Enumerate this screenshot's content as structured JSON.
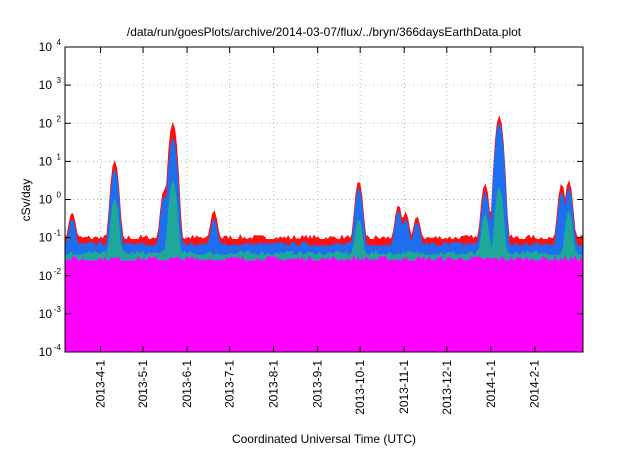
{
  "chart_data": {
    "type": "area",
    "title": "/data/run/goesPlots/archive/2014-03-07/flux/../bryn/366daysEarthData.plot",
    "xlabel": "Coordinated Universal Time (UTC)",
    "ylabel": "cSv/day",
    "y_scale": "log",
    "ylim": [
      0.0001,
      10000
    ],
    "xlim": [
      "2013-03-07",
      "2014-03-07"
    ],
    "grid": true,
    "y_ticks": [
      {
        "base": "10",
        "exp": "-4",
        "value": 0.0001
      },
      {
        "base": "10",
        "exp": "-3",
        "value": 0.001
      },
      {
        "base": "10",
        "exp": "-2",
        "value": 0.01
      },
      {
        "base": "10",
        "exp": "-1",
        "value": 0.1
      },
      {
        "base": "10",
        "exp": "0",
        "value": 1
      },
      {
        "base": "10",
        "exp": "1",
        "value": 10
      },
      {
        "base": "10",
        "exp": "2",
        "value": 100
      },
      {
        "base": "10",
        "exp": "3",
        "value": 1000
      },
      {
        "base": "10",
        "exp": "4",
        "value": 10000
      }
    ],
    "x_ticks": [
      {
        "label": "2013-4-1",
        "date": "2013-04-01"
      },
      {
        "label": "2013-5-1",
        "date": "2013-05-01"
      },
      {
        "label": "2013-6-1",
        "date": "2013-06-01"
      },
      {
        "label": "2013-7-1",
        "date": "2013-07-01"
      },
      {
        "label": "2013-8-1",
        "date": "2013-08-01"
      },
      {
        "label": "2013-9-1",
        "date": "2013-09-01"
      },
      {
        "label": "2013-10-1",
        "date": "2013-10-01"
      },
      {
        "label": "2013-11-1",
        "date": "2013-11-01"
      },
      {
        "label": "2013-12-1",
        "date": "2013-12-01"
      },
      {
        "label": "2014-1-1",
        "date": "2014-01-01"
      },
      {
        "label": "2014-2-1",
        "date": "2014-02-01"
      }
    ],
    "series": [
      {
        "color": "#ff1010",
        "baseline": 0.09,
        "peaks": [
          [
            "2013-03-12",
            0.45
          ],
          [
            "2013-04-11",
            10
          ],
          [
            "2013-05-16",
            1.8
          ],
          [
            "2013-05-22",
            100
          ],
          [
            "2013-06-20",
            0.5
          ],
          [
            "2013-09-30",
            3
          ],
          [
            "2013-10-28",
            0.7
          ],
          [
            "2013-11-02",
            0.45
          ],
          [
            "2013-11-10",
            0.35
          ],
          [
            "2013-12-28",
            2.5
          ],
          [
            "2014-01-07",
            150
          ],
          [
            "2014-02-20",
            2.5
          ],
          [
            "2014-02-25",
            3
          ]
        ]
      },
      {
        "color": "#1e6ef0",
        "baseline": 0.06,
        "peaks": [
          [
            "2013-03-12",
            0.3
          ],
          [
            "2013-04-11",
            6
          ],
          [
            "2013-05-16",
            1.2
          ],
          [
            "2013-05-22",
            40
          ],
          [
            "2013-06-20",
            0.3
          ],
          [
            "2013-09-30",
            2
          ],
          [
            "2013-10-28",
            0.5
          ],
          [
            "2013-11-02",
            0.3
          ],
          [
            "2013-11-10",
            0.25
          ],
          [
            "2013-12-28",
            1.5
          ],
          [
            "2014-01-07",
            100
          ],
          [
            "2014-02-20",
            1.5
          ],
          [
            "2014-02-25",
            2
          ]
        ]
      },
      {
        "color": "#1fa89a",
        "baseline": 0.035,
        "peaks": [
          [
            "2013-04-11",
            1
          ],
          [
            "2013-05-22",
            3
          ],
          [
            "2013-09-30",
            0.3
          ],
          [
            "2013-12-28",
            0.4
          ],
          [
            "2014-01-07",
            2
          ],
          [
            "2014-02-25",
            0.5
          ]
        ]
      },
      {
        "color": "#ff00ff",
        "baseline": 0.025,
        "floor": 0.004,
        "gaps": [
          [
            "2013-09-28",
            "2013-10-04"
          ]
        ]
      }
    ]
  }
}
